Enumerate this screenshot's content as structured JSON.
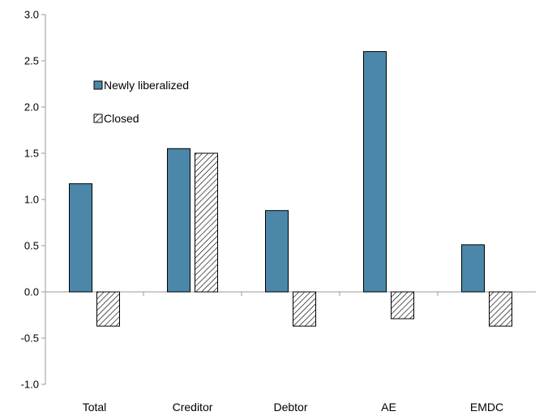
{
  "chart_data": {
    "type": "bar",
    "categories": [
      "Total",
      "Creditor",
      "Debtor",
      "AE",
      "EMDC"
    ],
    "series": [
      {
        "name": "Newly liberalized",
        "values": [
          1.17,
          1.55,
          0.88,
          2.6,
          0.51
        ],
        "color": "#4a87a9",
        "pattern": "solid"
      },
      {
        "name": "Closed",
        "values": [
          -0.37,
          1.5,
          -0.37,
          -0.29,
          -0.37
        ],
        "color": "#ffffff",
        "pattern": "diagonal-hatch"
      }
    ],
    "ylim": [
      -1.0,
      3.0
    ],
    "yticks": [
      "-1.0",
      "-0.5",
      "0.0",
      "0.5",
      "1.0",
      "1.5",
      "2.0",
      "2.5",
      "3.0"
    ],
    "title": "",
    "xlabel": "",
    "ylabel": "",
    "grid": false,
    "legend_position": "upper-left"
  }
}
